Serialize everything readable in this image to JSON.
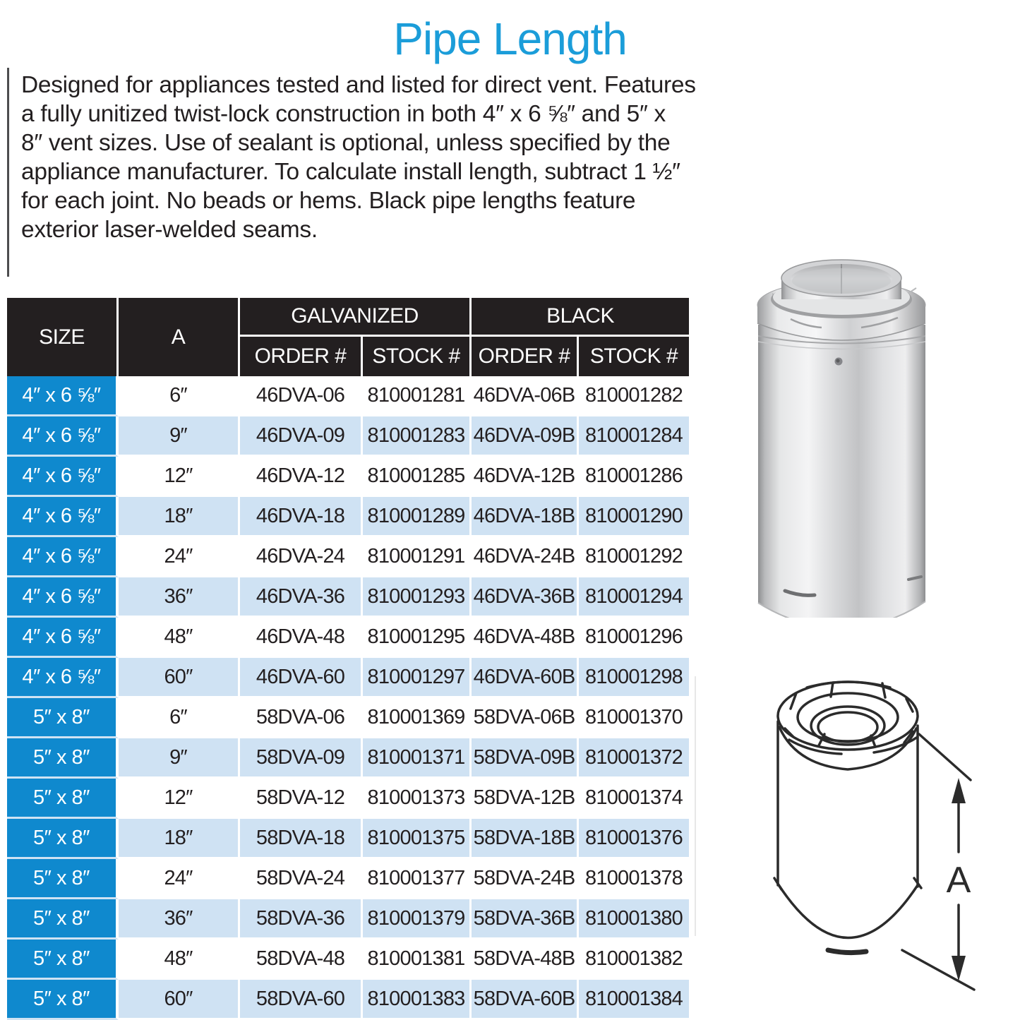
{
  "page": {
    "title": "Pipe Length"
  },
  "description_lines": [
    "Designed for appliances tested and listed for direct vent. Features",
    "a fully unitized twist-lock construction in both 4″ x 6 ⅝″ and 5″ x",
    "8″ vent sizes.  Use of sealant is optional, unless specified by the",
    "appliance manufacturer. To calculate install length, subtract 1 ½″",
    "for each joint.  No beads or hems. Black pipe lengths feature",
    "exterior laser-welded seams."
  ],
  "table": {
    "headers": {
      "size": "SIZE",
      "a": "A",
      "galvanized": "GALVANIZED",
      "black": "BLACK",
      "order": "ORDER #",
      "stock": "STOCK #"
    },
    "rows": [
      {
        "size": "4″ x 6 ⅝″",
        "a": "6″",
        "galv_order": "46DVA-06",
        "galv_stock": "810001281",
        "black_order": "46DVA-06B",
        "black_stock": "810001282"
      },
      {
        "size": "4″ x 6 ⅝″",
        "a": "9″",
        "galv_order": "46DVA-09",
        "galv_stock": "810001283",
        "black_order": "46DVA-09B",
        "black_stock": "810001284"
      },
      {
        "size": "4″ x 6 ⅝″",
        "a": "12″",
        "galv_order": "46DVA-12",
        "galv_stock": "810001285",
        "black_order": "46DVA-12B",
        "black_stock": "810001286"
      },
      {
        "size": "4″ x 6 ⅝″",
        "a": "18″",
        "galv_order": "46DVA-18",
        "galv_stock": "810001289",
        "black_order": "46DVA-18B",
        "black_stock": "810001290"
      },
      {
        "size": "4″ x 6 ⅝″",
        "a": "24″",
        "galv_order": "46DVA-24",
        "galv_stock": "810001291",
        "black_order": "46DVA-24B",
        "black_stock": "810001292"
      },
      {
        "size": "4″ x 6 ⅝″",
        "a": "36″",
        "galv_order": "46DVA-36",
        "galv_stock": "810001293",
        "black_order": "46DVA-36B",
        "black_stock": "810001294"
      },
      {
        "size": "4″ x 6 ⅝″",
        "a": "48″",
        "galv_order": "46DVA-48",
        "galv_stock": "810001295",
        "black_order": "46DVA-48B",
        "black_stock": "810001296"
      },
      {
        "size": "4″ x 6 ⅝″",
        "a": "60″",
        "galv_order": "46DVA-60",
        "galv_stock": "810001297",
        "black_order": "46DVA-60B",
        "black_stock": "810001298"
      },
      {
        "size": "5″ x 8″",
        "a": "6″",
        "galv_order": "58DVA-06",
        "galv_stock": "810001369",
        "black_order": "58DVA-06B",
        "black_stock": "810001370"
      },
      {
        "size": "5″ x 8″",
        "a": "9″",
        "galv_order": "58DVA-09",
        "galv_stock": "810001371",
        "black_order": "58DVA-09B",
        "black_stock": "810001372"
      },
      {
        "size": "5″ x 8″",
        "a": "12″",
        "galv_order": "58DVA-12",
        "galv_stock": "810001373",
        "black_order": "58DVA-12B",
        "black_stock": "810001374"
      },
      {
        "size": "5″ x 8″",
        "a": "18″",
        "galv_order": "58DVA-18",
        "galv_stock": "810001375",
        "black_order": "58DVA-18B",
        "black_stock": "810001376"
      },
      {
        "size": "5″ x 8″",
        "a": "24″",
        "galv_order": "58DVA-24",
        "galv_stock": "810001377",
        "black_order": "58DVA-24B",
        "black_stock": "810001378"
      },
      {
        "size": "5″ x 8″",
        "a": "36″",
        "galv_order": "58DVA-36",
        "galv_stock": "810001379",
        "black_order": "58DVA-36B",
        "black_stock": "810001380"
      },
      {
        "size": "5″ x 8″",
        "a": "48″",
        "galv_order": "58DVA-48",
        "galv_stock": "810001381",
        "black_order": "58DVA-48B",
        "black_stock": "810001382"
      },
      {
        "size": "5″ x 8″",
        "a": "60″",
        "galv_order": "58DVA-60",
        "galv_stock": "810001383",
        "black_order": "58DVA-60B",
        "black_stock": "810001384"
      }
    ]
  },
  "diagram": {
    "dimension_label": "A"
  },
  "figures": {
    "photo": "galvanized-pipe-length-photo",
    "diagram": "pipe-length-dimension-drawing"
  },
  "colors": {
    "title_blue": "#1b9dd9",
    "header_bg": "#231f20",
    "size_column_blue": "#0f89ce",
    "alt_row_blue": "#cfe2f3",
    "text": "#231f20"
  }
}
